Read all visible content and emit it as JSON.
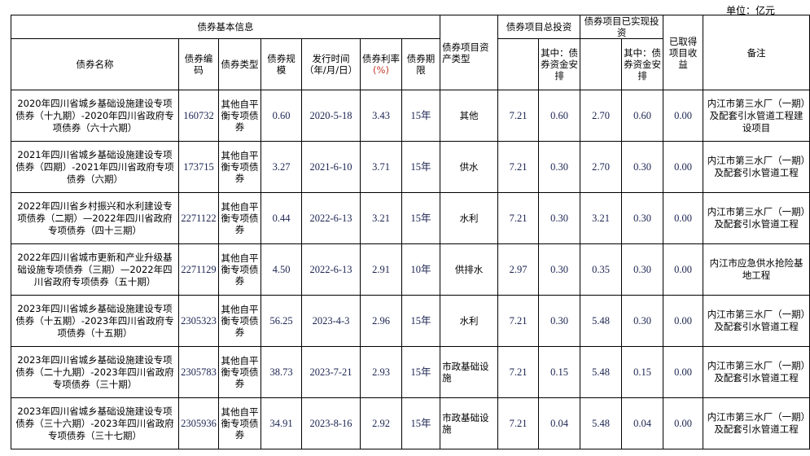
{
  "unit_label": "单位：亿元",
  "headers": {
    "basic_info": "债券基本信息",
    "name": "债券名称",
    "code": "债券编码",
    "type": "债券类型",
    "scale": "债券规模",
    "issue_date": "发行时间（年/月/日）",
    "rate_prefix": "债券利率",
    "rate_unit": "(%)",
    "term": "债券期限",
    "asset_type": "债券项目资产类型",
    "total_investment": "债券项目总投资",
    "total_bond_part": "其中：债券资金安排",
    "realized_investment": "债券项目已实现投资",
    "realized_bond_part": "其中：债券资金安排",
    "income": "已取得项目收益",
    "remark": "备注"
  },
  "rows": [
    {
      "name": "2020年四川省城乡基础设施建设专项债券（十九期）-2020年四川省政府专项债券（六十六期）",
      "code": "160732",
      "type": "其他自平衡专项债券",
      "scale": "0.60",
      "date": "2020-5-18",
      "rate": "3.43",
      "term": "15年",
      "asset": "其他",
      "total": "7.21",
      "total_bond": "0.60",
      "realized": "2.70",
      "realized_bond": "0.60",
      "income": "0.00",
      "remark": "内江市第三水厂（一期）及配套引水管道工程建设项目"
    },
    {
      "name": "2021年四川省城乡基础设施建设专项债券（四期）-2021年四川省政府专项债券（六期）",
      "code": "173715",
      "type": "其他自平衡专项债券",
      "scale": "3.27",
      "date": "2021-6-10",
      "rate": "3.71",
      "term": "15年",
      "asset": "供水",
      "total": "7.21",
      "total_bond": "0.30",
      "realized": "2.70",
      "realized_bond": "0.30",
      "income": "0.00",
      "remark": "内江市第三水厂（一期）及配套引水管道工程"
    },
    {
      "name": "2022年四川省乡村振兴和水利建设专项债券（二期）—2022年四川省政府专项债券（四十三期）",
      "code": "2271122",
      "type": "其他自平衡专项债券",
      "scale": "0.44",
      "date": "2022-6-13",
      "rate": "3.21",
      "term": "15年",
      "asset": "水利",
      "total": "7.21",
      "total_bond": "0.30",
      "realized": "3.21",
      "realized_bond": "0.30",
      "income": "0.00",
      "remark": "内江市第三水厂（一期）及配套引水管道工程"
    },
    {
      "name": "2022年四川省城市更新和产业升级基础设施专项债券（三期）—2022年四川省政府专项债券（五十期）",
      "code": "2271129",
      "type": "其他自平衡专项债券",
      "scale": "4.50",
      "date": "2022-6-13",
      "rate": "2.91",
      "term": "10年",
      "asset": "供排水",
      "total": "2.97",
      "total_bond": "0.30",
      "realized": "0.35",
      "realized_bond": "0.30",
      "income": "0.00",
      "remark": "内江市应急供水抢险基地工程"
    },
    {
      "name": "2023年四川省城乡基础设施建设专项债券（十五期）-2023年四川省政府专项债券（十五期）",
      "code": "2305323",
      "type": "其他自平衡专项债券",
      "scale": "56.25",
      "date": "2023-4-3",
      "rate": "2.96",
      "term": "15年",
      "asset": "水利",
      "total": "7.21",
      "total_bond": "0.30",
      "realized": "5.48",
      "realized_bond": "0.30",
      "income": "0.00",
      "remark": "内江市第三水厂（一期）及配套引水管道工程"
    },
    {
      "name": "2023年四川省城乡基础设施建设专项债券（二十九期）-2023年四川省政府专项债券（三十期）",
      "code": "2305783",
      "type": "其他自平衡专项债券",
      "scale": "38.73",
      "date": "2023-7-21",
      "rate": "2.93",
      "term": "15年",
      "asset": "市政基础设施",
      "total": "7.21",
      "total_bond": "0.15",
      "realized": "5.48",
      "realized_bond": "0.15",
      "income": "0.00",
      "remark": "内江市第三水厂（一期）及配套引水管道工程"
    },
    {
      "name": "2023年四川省城乡基础设施建设专项债券（三十六期）-2023年四川省政府专项债券（三十七期）",
      "code": "2305936",
      "type": "其他自平衡专项债券",
      "scale": "34.91",
      "date": "2023-8-16",
      "rate": "2.92",
      "term": "15年",
      "asset": "市政基础设施",
      "total": "7.21",
      "total_bond": "0.04",
      "realized": "5.48",
      "realized_bond": "0.04",
      "income": "0.00",
      "remark": "内江市第三水厂（一期）及配套引水管道工程"
    }
  ]
}
